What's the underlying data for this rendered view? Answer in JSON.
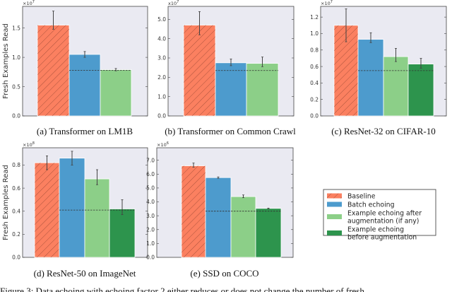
{
  "colors": {
    "baseline": "#fb8060",
    "batch": "#4d9bcd",
    "after": "#8ccf88",
    "before": "#2d944d",
    "background": "#eaeaf2",
    "hatch": "#8a3f2c"
  },
  "legend": {
    "placement": "lower-right",
    "entries": [
      {
        "label_lines": [
          "Baseline"
        ],
        "key": "baseline"
      },
      {
        "label_lines": [
          "Batch echoing"
        ],
        "key": "batch"
      },
      {
        "label_lines": [
          "Example echoing after",
          "augmentation (if any)"
        ],
        "key": "after"
      },
      {
        "label_lines": [
          "Example echoing",
          "before augmentation"
        ],
        "key": "before"
      }
    ]
  },
  "figure_caption": "Figure 3: Data echoing with echoing factor 2 either reduces or does not change the number of fresh",
  "chart_data": [
    {
      "type": "bar",
      "caption": "(a) Transformer on LM1B",
      "ylabel": "Fresh Examples Read",
      "multiplier": "×10",
      "exponent": "7",
      "ylim": [
        0,
        1.87
      ],
      "yticks": [
        0,
        0.5,
        1.0,
        1.5
      ],
      "ytick_labels": [
        "0.0",
        "0.5",
        "1.0",
        "1.5"
      ],
      "series": [
        "baseline",
        "batch",
        "after"
      ],
      "values": [
        1.55,
        1.05,
        0.79
      ],
      "errors": [
        [
          1.48,
          1.79
        ],
        [
          1.0,
          1.1
        ],
        [
          0.77,
          0.81
        ]
      ],
      "dashed_reference": 0.78
    },
    {
      "type": "bar",
      "caption": "(b) Transformer on Common Crawl",
      "ylabel": "",
      "multiplier": "x10",
      "exponent": "7",
      "ylim": [
        0,
        5.67
      ],
      "yticks": [
        0,
        1,
        2,
        3,
        4,
        5
      ],
      "ytick_labels": [
        "0.0",
        "1.0",
        "2.0",
        "3.0",
        "4.0",
        "5.0"
      ],
      "series": [
        "baseline",
        "batch",
        "after"
      ],
      "values": [
        4.7,
        2.75,
        2.72
      ],
      "errors": [
        [
          4.2,
          5.4
        ],
        [
          2.6,
          2.95
        ],
        [
          2.55,
          3.05
        ]
      ],
      "dashed_reference": 2.35
    },
    {
      "type": "bar",
      "caption": "(c) ResNet-32 on CIFAR-10",
      "ylabel": "",
      "multiplier": "×10",
      "exponent": "7",
      "ylim": [
        0,
        1.33
      ],
      "yticks": [
        0,
        0.2,
        0.4,
        0.6,
        0.8,
        1.0,
        1.2
      ],
      "ytick_labels": [
        "0.0",
        "0.2",
        "0.4",
        "0.6",
        "0.8",
        "1.0",
        "1.2"
      ],
      "series": [
        "baseline",
        "batch",
        "after",
        "before"
      ],
      "values": [
        1.1,
        0.93,
        0.72,
        0.63
      ],
      "errors": [
        [
          0.9,
          1.3
        ],
        [
          0.89,
          1.01
        ],
        [
          0.66,
          0.82
        ],
        [
          0.58,
          0.7
        ]
      ],
      "dashed_reference": 0.55
    },
    {
      "type": "bar",
      "caption": "(d) ResNet-50 on ImageNet",
      "ylabel": "Fresh Examples Read",
      "multiplier": "×10",
      "exponent": "8",
      "ylim": [
        0,
        0.95
      ],
      "yticks": [
        0,
        0.2,
        0.4,
        0.6,
        0.8
      ],
      "ytick_labels": [
        "0.0",
        "0.2",
        "0.4",
        "0.6",
        "0.8"
      ],
      "series": [
        "baseline",
        "batch",
        "after",
        "before"
      ],
      "values": [
        0.82,
        0.86,
        0.68,
        0.42
      ],
      "errors": [
        [
          0.76,
          0.88
        ],
        [
          0.8,
          0.92
        ],
        [
          0.63,
          0.76
        ],
        [
          0.37,
          0.5
        ]
      ],
      "dashed_reference": 0.41
    },
    {
      "type": "bar",
      "caption": "(e) SSD on COCO",
      "ylabel": "",
      "multiplier": "×10",
      "exponent": "6",
      "ylim": [
        0,
        7.9
      ],
      "yticks": [
        0,
        1,
        2,
        3,
        4,
        5,
        6,
        7
      ],
      "ytick_labels": [
        "0.0",
        "1.0",
        "2.0",
        "3.0",
        "4.0",
        "5.0",
        "6.0",
        "7.0"
      ],
      "series": [
        "baseline",
        "batch",
        "after",
        "before"
      ],
      "values": [
        6.6,
        5.75,
        4.38,
        3.53
      ],
      "errors": [
        [
          6.5,
          6.8
        ],
        [
          5.7,
          5.8
        ],
        [
          4.3,
          4.5
        ],
        [
          3.5,
          3.55
        ]
      ],
      "dashed_reference": 3.33
    }
  ]
}
